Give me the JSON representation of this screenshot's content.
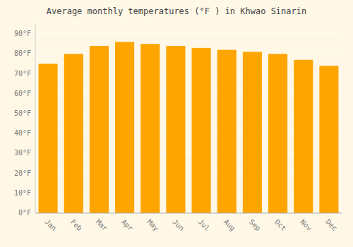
{
  "chart_data": {
    "type": "bar",
    "title": "Average monthly temperatures (°F ) in Khwao Sinarin",
    "categories": [
      "Jan",
      "Feb",
      "Mar",
      "Apr",
      "May",
      "Jun",
      "Jul",
      "Aug",
      "Sep",
      "Oct",
      "Nov",
      "Dec"
    ],
    "values": [
      75,
      80,
      84,
      86,
      85,
      84,
      83,
      82,
      81,
      80,
      77,
      74
    ],
    "color": "#FFA500",
    "ylim": [
      0,
      95
    ],
    "yticks": [
      {
        "value": 0,
        "label": "0°F"
      },
      {
        "value": 10,
        "label": "10°F"
      },
      {
        "value": 20,
        "label": "20°F"
      },
      {
        "value": 30,
        "label": "30°F"
      },
      {
        "value": 40,
        "label": "40°F"
      },
      {
        "value": 50,
        "label": "50°F"
      },
      {
        "value": 60,
        "label": "60°F"
      },
      {
        "value": 70,
        "label": "70°F"
      },
      {
        "value": 80,
        "label": "80°F"
      },
      {
        "value": 90,
        "label": "90°F"
      }
    ],
    "grid": true
  }
}
